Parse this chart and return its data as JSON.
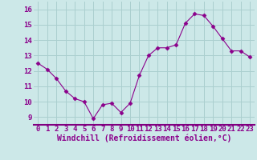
{
  "x": [
    0,
    1,
    2,
    3,
    4,
    5,
    6,
    7,
    8,
    9,
    10,
    11,
    12,
    13,
    14,
    15,
    16,
    17,
    18,
    19,
    20,
    21,
    22,
    23
  ],
  "y": [
    12.5,
    12.1,
    11.5,
    10.7,
    10.2,
    10.0,
    8.9,
    9.8,
    9.9,
    9.3,
    9.9,
    11.7,
    13.0,
    13.5,
    13.5,
    13.7,
    15.1,
    15.7,
    15.6,
    14.9,
    14.1,
    13.3,
    13.3,
    12.9
  ],
  "line_color": "#8B008B",
  "marker": "D",
  "marker_size": 2.5,
  "bg_color": "#cce8e8",
  "grid_color": "#aacfcf",
  "xlabel": "Windchill (Refroidissement éolien,°C)",
  "ylim": [
    8.5,
    16.5
  ],
  "xlim": [
    -0.5,
    23.5
  ],
  "yticks": [
    9,
    10,
    11,
    12,
    13,
    14,
    15,
    16
  ],
  "xticks": [
    0,
    1,
    2,
    3,
    4,
    5,
    6,
    7,
    8,
    9,
    10,
    11,
    12,
    13,
    14,
    15,
    16,
    17,
    18,
    19,
    20,
    21,
    22,
    23
  ],
  "tick_fontsize": 6.5,
  "xlabel_fontsize": 7.0,
  "border_color": "#800080"
}
